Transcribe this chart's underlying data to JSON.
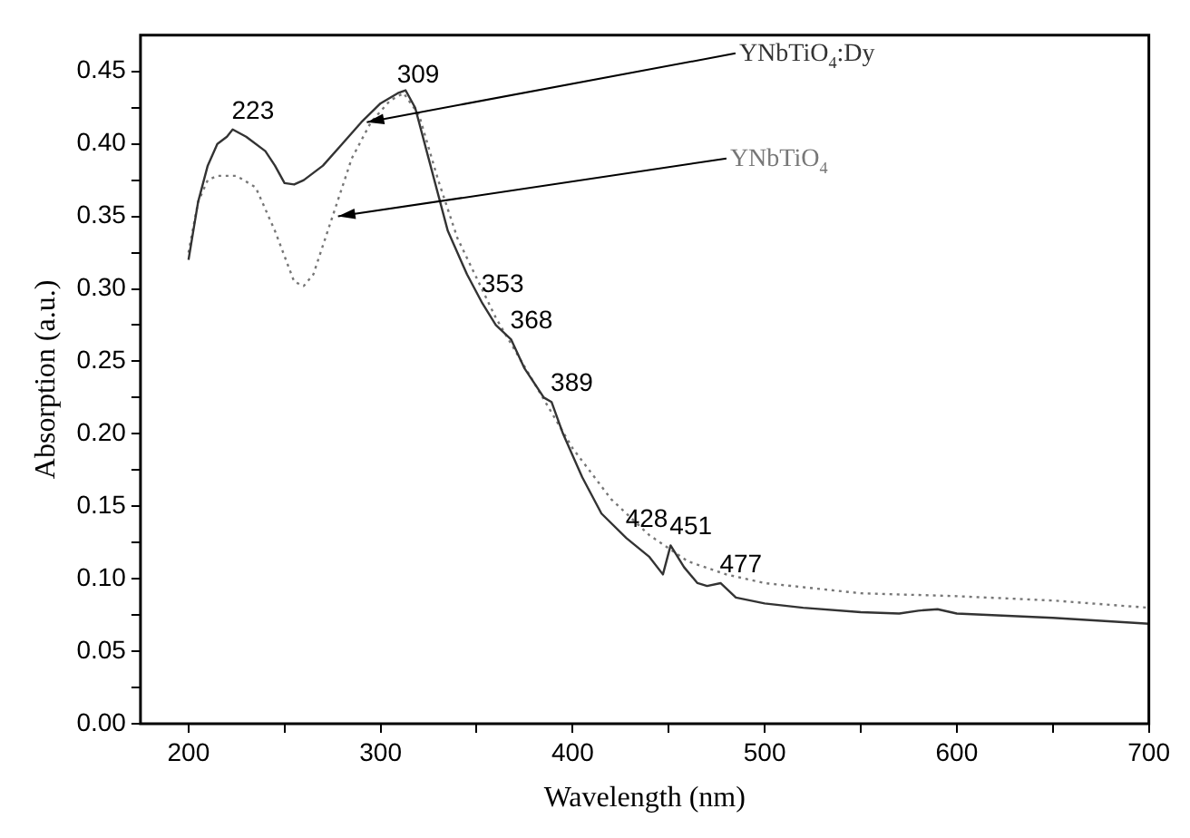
{
  "chart_data": {
    "type": "line",
    "xlabel": "Wavelength (nm)",
    "ylabel": "Absorption (a.u.)",
    "xlim": [
      175,
      700
    ],
    "ylim": [
      0,
      0.475
    ],
    "xticks": [
      200,
      {
        "value": 250,
        "label": null
      },
      300,
      {
        "value": 350,
        "label": null
      },
      400,
      {
        "value": 450,
        "label": null
      },
      500,
      {
        "value": 550,
        "label": null
      },
      600,
      {
        "value": 650,
        "label": null
      },
      700
    ],
    "yticks": [
      {
        "value": 0,
        "label": "0.00"
      },
      {
        "value": 0.025,
        "label": null
      },
      0.05,
      {
        "value": 0.075,
        "label": null
      },
      {
        "value": 0.1,
        "label": "0.10"
      },
      {
        "value": 0.125,
        "label": null
      },
      0.15,
      {
        "value": 0.175,
        "label": null
      },
      {
        "value": 0.2,
        "label": "0.20"
      },
      {
        "value": 0.225,
        "label": null
      },
      0.25,
      {
        "value": 0.275,
        "label": null
      },
      {
        "value": 0.3,
        "label": "0.30"
      },
      {
        "value": 0.325,
        "label": null
      },
      0.35,
      {
        "value": 0.375,
        "label": null
      },
      {
        "value": 0.4,
        "label": "0.40"
      },
      {
        "value": 0.425,
        "label": null
      },
      0.45
    ],
    "grid": false,
    "legend": false,
    "marker": "none",
    "series": [
      {
        "name": "YNbTiO$_{4}$:Dy",
        "color": "#333333",
        "line_style": "solid",
        "x": [
          200,
          205,
          210,
          215,
          220,
          223,
          230,
          240,
          245,
          250,
          255,
          260,
          265,
          270,
          280,
          290,
          300,
          309,
          313,
          318,
          325,
          335,
          345,
          353,
          360,
          368,
          375,
          385,
          389,
          395,
          405,
          415,
          428,
          440,
          447,
          451,
          458,
          465,
          470,
          477,
          485,
          500,
          520,
          550,
          570,
          580,
          590,
          600,
          650,
          700
        ],
        "values": [
          0.32,
          0.36,
          0.385,
          0.4,
          0.405,
          0.41,
          0.405,
          0.395,
          0.385,
          0.373,
          0.372,
          0.375,
          0.38,
          0.385,
          0.4,
          0.415,
          0.428,
          0.435,
          0.437,
          0.425,
          0.39,
          0.34,
          0.31,
          0.29,
          0.275,
          0.265,
          0.245,
          0.225,
          0.222,
          0.2,
          0.17,
          0.145,
          0.128,
          0.115,
          0.103,
          0.123,
          0.108,
          0.097,
          0.095,
          0.097,
          0.087,
          0.083,
          0.08,
          0.077,
          0.076,
          0.078,
          0.079,
          0.076,
          0.073,
          0.069
        ]
      },
      {
        "name": "YNbTiO$_{4}$",
        "color": "#777777",
        "line_style": "dotted",
        "x": [
          200,
          205,
          210,
          215,
          225,
          235,
          245,
          255,
          260,
          265,
          275,
          285,
          295,
          305,
          312,
          320,
          330,
          340,
          360,
          380,
          400,
          420,
          440,
          460,
          480,
          500,
          550,
          600,
          650,
          700
        ],
        "values": [
          0.325,
          0.36,
          0.375,
          0.378,
          0.378,
          0.37,
          0.34,
          0.305,
          0.302,
          0.31,
          0.35,
          0.39,
          0.415,
          0.43,
          0.435,
          0.42,
          0.375,
          0.335,
          0.28,
          0.235,
          0.19,
          0.155,
          0.13,
          0.112,
          0.103,
          0.097,
          0.09,
          0.088,
          0.085,
          0.08
        ]
      }
    ],
    "annotations": [
      {
        "text": "223",
        "x": 223,
        "y": 0.41
      },
      {
        "text": "309",
        "x": 309,
        "y": 0.435
      },
      {
        "text": "353",
        "x": 353,
        "y": 0.29
      },
      {
        "text": "368",
        "x": 368,
        "y": 0.265
      },
      {
        "text": "389",
        "x": 389,
        "y": 0.222
      },
      {
        "text": "428",
        "x": 428,
        "y": 0.128
      },
      {
        "text": "451",
        "x": 451,
        "y": 0.123
      },
      {
        "text": "477",
        "x": 477,
        "y": 0.097
      }
    ]
  }
}
